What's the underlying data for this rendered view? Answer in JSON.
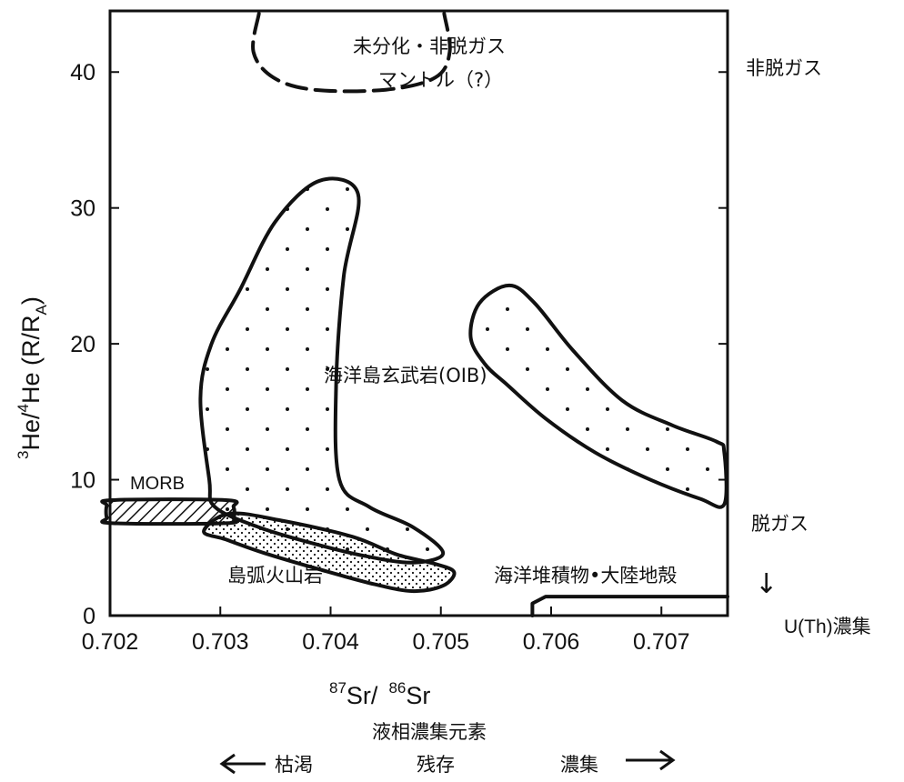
{
  "chart_data": {
    "type": "scatter",
    "x": {
      "label_prefix": "87",
      "label_main": "Sr/",
      "label_prefix2": "86",
      "label_main2": "Sr",
      "range": [
        0.702,
        0.7076
      ],
      "ticks": [
        "0.702",
        "0.703",
        "0.704",
        "0.705",
        "0.706",
        "0.707"
      ],
      "tick_values": [
        0.702,
        0.703,
        0.704,
        0.705,
        0.706,
        0.707
      ]
    },
    "y": {
      "label_sup1": "3",
      "label_he": "He/",
      "label_sup2": "4",
      "label_he2": "He (R/R",
      "label_sub": "A",
      "label_close": ")",
      "range": [
        0,
        44.5
      ],
      "ticks": [
        "0",
        "10",
        "20",
        "30",
        "40"
      ],
      "tick_values": [
        0,
        10,
        20,
        30,
        40
      ]
    },
    "regions": [
      {
        "name": "海洋島玄武岩(OIB)",
        "style": "dotted",
        "points": [
          [
            0.7029,
            10
          ],
          [
            0.70282,
            16
          ],
          [
            0.70292,
            20
          ],
          [
            0.70318,
            24
          ],
          [
            0.7035,
            29
          ],
          [
            0.7039,
            32
          ],
          [
            0.70425,
            31
          ],
          [
            0.70412,
            25
          ],
          [
            0.70405,
            17
          ],
          [
            0.70408,
            10
          ],
          [
            0.70435,
            8
          ],
          [
            0.70475,
            6.5
          ],
          [
            0.70502,
            4.6
          ],
          [
            0.70475,
            3.9
          ],
          [
            0.7043,
            4.4
          ],
          [
            0.7038,
            5.4
          ],
          [
            0.70335,
            6.5
          ],
          [
            0.70295,
            8
          ]
        ]
      },
      {
        "name": "海洋島玄武岩(OIB) 右",
        "style": "dotted",
        "points": [
          [
            0.70535,
            23
          ],
          [
            0.70562,
            24.3
          ],
          [
            0.70585,
            23
          ],
          [
            0.7062,
            19.5
          ],
          [
            0.70665,
            15.8
          ],
          [
            0.7071,
            14
          ],
          [
            0.7075,
            12.8
          ],
          [
            0.70757,
            12
          ],
          [
            0.70757,
            8.2
          ],
          [
            0.70735,
            8.6
          ],
          [
            0.7069,
            10
          ],
          [
            0.7064,
            12
          ],
          [
            0.70595,
            14.5
          ],
          [
            0.7056,
            17
          ],
          [
            0.7054,
            18.5
          ],
          [
            0.70527,
            20.5
          ]
        ]
      },
      {
        "name": "島弧火山岩",
        "style": "stipple",
        "points": [
          [
            0.70308,
            7.5
          ],
          [
            0.70355,
            7
          ],
          [
            0.7042,
            5.8
          ],
          [
            0.7046,
            4.5
          ],
          [
            0.70495,
            3.8
          ],
          [
            0.70512,
            3.2
          ],
          [
            0.70502,
            2.2
          ],
          [
            0.70475,
            1.8
          ],
          [
            0.7044,
            2.3
          ],
          [
            0.7039,
            3.4
          ],
          [
            0.7034,
            4.6
          ],
          [
            0.70305,
            5.6
          ],
          [
            0.70285,
            6.2
          ]
        ]
      },
      {
        "name": "MORB",
        "style": "hatched",
        "points": [
          [
            0.70202,
            8.5
          ],
          [
            0.70305,
            8.5
          ],
          [
            0.70312,
            8
          ],
          [
            0.70312,
            7.2
          ],
          [
            0.70305,
            6.8
          ],
          [
            0.70202,
            6.8
          ],
          [
            0.70197,
            7.2
          ],
          [
            0.70197,
            8.1
          ]
        ]
      },
      {
        "name": "海洋堆積物・大陸地殻",
        "style": "outline",
        "points": [
          [
            0.70583,
            0
          ],
          [
            0.70583,
            0.9
          ],
          [
            0.70595,
            1.4
          ],
          [
            0.7076,
            1.4
          ]
        ]
      },
      {
        "name": "未分化・非脱ガス マントル（?）",
        "style": "dashed",
        "points": [
          [
            0.70335,
            44.3
          ],
          [
            0.7033,
            41.5
          ],
          [
            0.70348,
            39.6
          ],
          [
            0.70385,
            38.7
          ],
          [
            0.7045,
            38.7
          ],
          [
            0.70495,
            39.6
          ],
          [
            0.70508,
            41.5
          ],
          [
            0.70503,
            44.3
          ]
        ]
      }
    ],
    "labels": {
      "mantle_line1": "未分化・非脱ガス",
      "mantle_line2": "マントル（?）",
      "oib": "海洋島玄武岩(OIB)",
      "morb": "MORB",
      "arc": "島弧火山岩",
      "sediment": "海洋堆積物•大陸地殻"
    },
    "side_labels": {
      "nondegassed": "非脱ガス",
      "degassed": "脱ガス",
      "u_th": "U(Th)濃集",
      "arrow": "↓"
    },
    "bottom_labels": {
      "title": "液相濃集元素",
      "left": "枯渇",
      "middle": "残存",
      "right": "濃集"
    },
    "colors": {
      "ink": "#111111",
      "background": "#ffffff"
    }
  }
}
